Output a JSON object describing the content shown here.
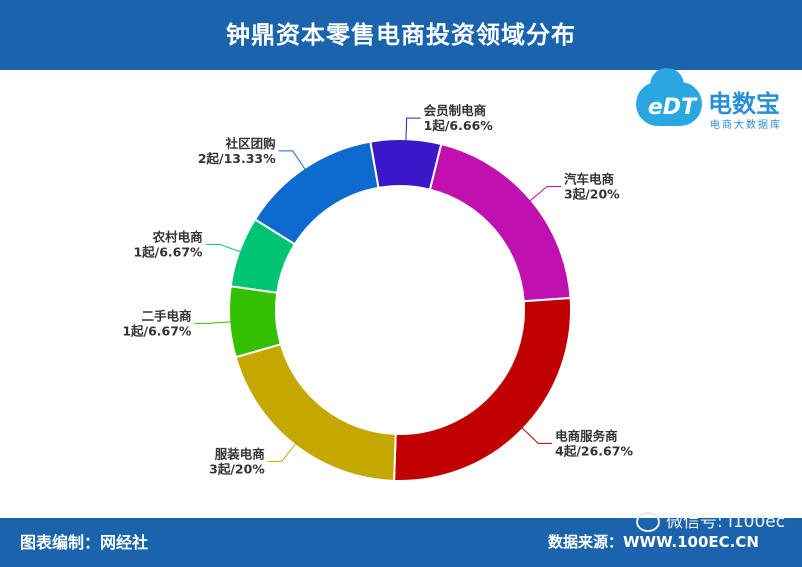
{
  "header": {
    "title": "钟鼎资本零售电商投资领域分布"
  },
  "footer": {
    "credit": "图表编制：网经社",
    "source": "数据来源：WWW.100EC.CN",
    "wechat": "微信号: i100ec"
  },
  "logo": {
    "mark": "eDT",
    "name": "电数宝",
    "sub": "电商大数据库"
  },
  "colors": {
    "header_bg": "#1a63ad"
  },
  "chart_data": {
    "type": "pie",
    "variant": "donut",
    "start_angle_deg": -10,
    "slices": [
      {
        "name": "会员制电商",
        "count": 1,
        "label": "1起/6.66%",
        "value": 6.66,
        "color": "#3a18c8"
      },
      {
        "name": "汽车电商",
        "count": 3,
        "label": "3起/20%",
        "value": 20,
        "color": "#c010b0"
      },
      {
        "name": "电商服务商",
        "count": 4,
        "label": "4起/26.67%",
        "value": 26.67,
        "color": "#c00000"
      },
      {
        "name": "服装电商",
        "count": 3,
        "label": "3起/20%",
        "value": 20,
        "color": "#c4a800"
      },
      {
        "name": "二手电商",
        "count": 1,
        "label": "1起/6.67%",
        "value": 6.67,
        "color": "#33c000"
      },
      {
        "name": "农村电商",
        "count": 1,
        "label": "1起/6.67%",
        "value": 6.67,
        "color": "#00c473"
      },
      {
        "name": "社区团购",
        "count": 2,
        "label": "2起/13.33%",
        "value": 13.33,
        "color": "#0f6ad0"
      }
    ]
  }
}
